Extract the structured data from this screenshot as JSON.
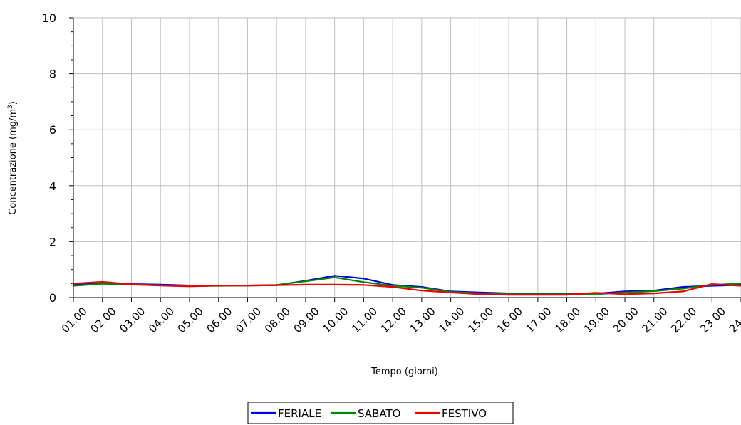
{
  "chart_data": {
    "type": "line",
    "xlabel": "Tempo (giorni)",
    "ylabel": "Concentrazione (mg/m",
    "ylabel_sup": "3",
    "ylabel_close": ")",
    "ylim": [
      0,
      10
    ],
    "y_ticks": [
      0,
      2,
      4,
      6,
      8,
      10
    ],
    "y_minor_step": 0.5,
    "grid": true,
    "legend_position": "bottom-center",
    "categories": [
      "01.00",
      "02.00",
      "03.00",
      "04.00",
      "05.00",
      "06.00",
      "07.00",
      "08.00",
      "09.00",
      "10.00",
      "11.00",
      "12.00",
      "13.00",
      "14.00",
      "15.00",
      "16.00",
      "17.00",
      "18.00",
      "19.00",
      "20.00",
      "21.00",
      "22.00",
      "23.00",
      "24.00"
    ],
    "series": [
      {
        "name": "FERIALE",
        "color": "#0000dd",
        "values": [
          0.45,
          0.52,
          0.48,
          0.46,
          0.43,
          0.43,
          0.43,
          0.44,
          0.6,
          0.78,
          0.68,
          0.45,
          0.38,
          0.22,
          0.18,
          0.15,
          0.15,
          0.15,
          0.14,
          0.22,
          0.25,
          0.38,
          0.42,
          0.45
        ]
      },
      {
        "name": "SABATO",
        "color": "#008800",
        "values": [
          0.42,
          0.49,
          0.46,
          0.44,
          0.41,
          0.42,
          0.43,
          0.45,
          0.58,
          0.72,
          0.55,
          0.42,
          0.35,
          0.2,
          0.15,
          0.12,
          0.12,
          0.12,
          0.12,
          0.18,
          0.23,
          0.32,
          0.45,
          0.5
        ]
      },
      {
        "name": "FESTIVO",
        "color": "#ee0000",
        "values": [
          0.5,
          0.56,
          0.47,
          0.43,
          0.4,
          0.43,
          0.43,
          0.44,
          0.46,
          0.46,
          0.45,
          0.38,
          0.25,
          0.18,
          0.12,
          0.1,
          0.1,
          0.1,
          0.17,
          0.12,
          0.15,
          0.22,
          0.48,
          0.42
        ]
      }
    ]
  }
}
